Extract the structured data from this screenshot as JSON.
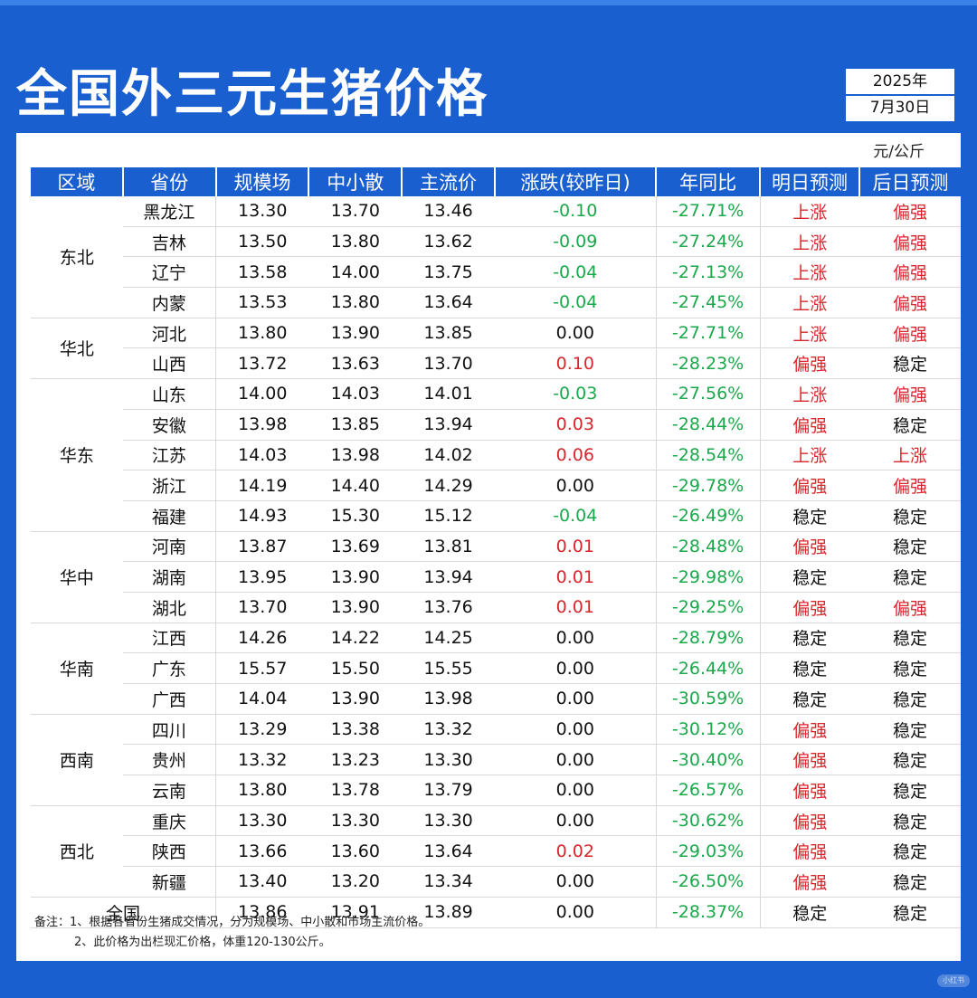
{
  "title": "全国外三元生猪价格",
  "date": {
    "year": "2025年",
    "monthday": "7月30日"
  },
  "unit": "元/公斤",
  "columns": [
    "区域",
    "省份",
    "规模场",
    "中小散",
    "主流价",
    "涨跌(较昨日)",
    "年同比",
    "明日预测",
    "后日预测"
  ],
  "colors": {
    "up": "#d9262c",
    "down": "#1aa84a",
    "flat": "#111111",
    "brand": "#1a5fd0"
  },
  "regions": [
    {
      "name": "东北",
      "rows": [
        {
          "province": "黑龙江",
          "large": "13.30",
          "small": "13.70",
          "main": "13.46",
          "change": "-0.10",
          "yoy": "-27.71%",
          "tomorrow": "上涨",
          "dayafter": "偏强"
        },
        {
          "province": "吉林",
          "large": "13.50",
          "small": "13.80",
          "main": "13.62",
          "change": "-0.09",
          "yoy": "-27.24%",
          "tomorrow": "上涨",
          "dayafter": "偏强"
        },
        {
          "province": "辽宁",
          "large": "13.58",
          "small": "14.00",
          "main": "13.75",
          "change": "-0.04",
          "yoy": "-27.13%",
          "tomorrow": "上涨",
          "dayafter": "偏强"
        },
        {
          "province": "内蒙",
          "large": "13.53",
          "small": "13.80",
          "main": "13.64",
          "change": "-0.04",
          "yoy": "-27.45%",
          "tomorrow": "上涨",
          "dayafter": "偏强"
        }
      ]
    },
    {
      "name": "华北",
      "rows": [
        {
          "province": "河北",
          "large": "13.80",
          "small": "13.90",
          "main": "13.85",
          "change": "0.00",
          "yoy": "-27.71%",
          "tomorrow": "上涨",
          "dayafter": "偏强"
        },
        {
          "province": "山西",
          "large": "13.72",
          "small": "13.63",
          "main": "13.70",
          "change": "0.10",
          "yoy": "-28.23%",
          "tomorrow": "偏强",
          "dayafter": "稳定"
        }
      ]
    },
    {
      "name": "华东",
      "rows": [
        {
          "province": "山东",
          "large": "14.00",
          "small": "14.03",
          "main": "14.01",
          "change": "-0.03",
          "yoy": "-27.56%",
          "tomorrow": "上涨",
          "dayafter": "偏强"
        },
        {
          "province": "安徽",
          "large": "13.98",
          "small": "13.85",
          "main": "13.94",
          "change": "0.03",
          "yoy": "-28.44%",
          "tomorrow": "偏强",
          "dayafter": "稳定"
        },
        {
          "province": "江苏",
          "large": "14.03",
          "small": "13.98",
          "main": "14.02",
          "change": "0.06",
          "yoy": "-28.54%",
          "tomorrow": "上涨",
          "dayafter": "上涨"
        },
        {
          "province": "浙江",
          "large": "14.19",
          "small": "14.40",
          "main": "14.29",
          "change": "0.00",
          "yoy": "-29.78%",
          "tomorrow": "偏强",
          "dayafter": "偏强"
        },
        {
          "province": "福建",
          "large": "14.93",
          "small": "15.30",
          "main": "15.12",
          "change": "-0.04",
          "yoy": "-26.49%",
          "tomorrow": "稳定",
          "dayafter": "稳定"
        }
      ]
    },
    {
      "name": "华中",
      "rows": [
        {
          "province": "河南",
          "large": "13.87",
          "small": "13.69",
          "main": "13.81",
          "change": "0.01",
          "yoy": "-28.48%",
          "tomorrow": "偏强",
          "dayafter": "稳定"
        },
        {
          "province": "湖南",
          "large": "13.95",
          "small": "13.90",
          "main": "13.94",
          "change": "0.01",
          "yoy": "-29.98%",
          "tomorrow": "稳定",
          "dayafter": "稳定"
        },
        {
          "province": "湖北",
          "large": "13.70",
          "small": "13.90",
          "main": "13.76",
          "change": "0.01",
          "yoy": "-29.25%",
          "tomorrow": "偏强",
          "dayafter": "偏强"
        }
      ]
    },
    {
      "name": "华南",
      "rows": [
        {
          "province": "江西",
          "large": "14.26",
          "small": "14.22",
          "main": "14.25",
          "change": "0.00",
          "yoy": "-28.79%",
          "tomorrow": "稳定",
          "dayafter": "稳定"
        },
        {
          "province": "广东",
          "large": "15.57",
          "small": "15.50",
          "main": "15.55",
          "change": "0.00",
          "yoy": "-26.44%",
          "tomorrow": "稳定",
          "dayafter": "稳定"
        },
        {
          "province": "广西",
          "large": "14.04",
          "small": "13.90",
          "main": "13.98",
          "change": "0.00",
          "yoy": "-30.59%",
          "tomorrow": "稳定",
          "dayafter": "稳定"
        }
      ]
    },
    {
      "name": "西南",
      "rows": [
        {
          "province": "四川",
          "large": "13.29",
          "small": "13.38",
          "main": "13.32",
          "change": "0.00",
          "yoy": "-30.12%",
          "tomorrow": "偏强",
          "dayafter": "稳定"
        },
        {
          "province": "贵州",
          "large": "13.32",
          "small": "13.23",
          "main": "13.30",
          "change": "0.00",
          "yoy": "-30.40%",
          "tomorrow": "偏强",
          "dayafter": "稳定"
        },
        {
          "province": "云南",
          "large": "13.80",
          "small": "13.78",
          "main": "13.79",
          "change": "0.00",
          "yoy": "-26.57%",
          "tomorrow": "偏强",
          "dayafter": "稳定"
        }
      ]
    },
    {
      "name": "西北",
      "rows": [
        {
          "province": "重庆",
          "large": "13.30",
          "small": "13.30",
          "main": "13.30",
          "change": "0.00",
          "yoy": "-30.62%",
          "tomorrow": "偏强",
          "dayafter": "稳定"
        },
        {
          "province": "陕西",
          "large": "13.66",
          "small": "13.60",
          "main": "13.64",
          "change": "0.02",
          "yoy": "-29.03%",
          "tomorrow": "偏强",
          "dayafter": "稳定"
        },
        {
          "province": "新疆",
          "large": "13.40",
          "small": "13.20",
          "main": "13.34",
          "change": "0.00",
          "yoy": "-26.50%",
          "tomorrow": "偏强",
          "dayafter": "稳定"
        }
      ]
    }
  ],
  "national": {
    "label": "全国",
    "large": "13.86",
    "small": "13.91",
    "main": "13.89",
    "change": "0.00",
    "yoy": "-28.37%",
    "tomorrow": "稳定",
    "dayafter": "稳定"
  },
  "notes": [
    "备注：1、根据各省份生猪成交情况，分为规模场、中小散和市场主流价格。",
    "2、此价格为出栏现汇价格，体重120-130公斤。"
  ],
  "watermark": "小红书"
}
